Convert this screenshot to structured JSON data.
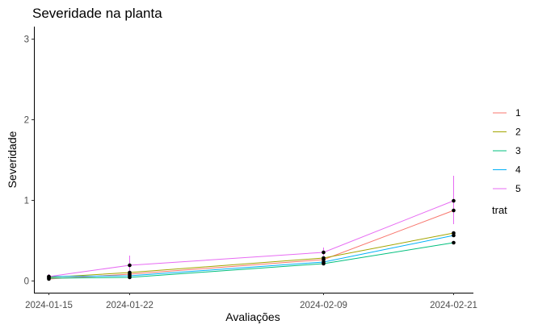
{
  "chart_data": {
    "type": "line",
    "title": "Severidade na planta",
    "xlabel": "Avaliações",
    "ylabel": "Severidade",
    "x": [
      "2024-01-15",
      "2024-01-22",
      "2024-02-09",
      "2024-02-21"
    ],
    "x_ticks": [
      "2024-01-15",
      "2024-01-22",
      "2024-02-09",
      "2024-02-21"
    ],
    "y_ticks": [
      "0",
      "1",
      "2",
      "3"
    ],
    "ylim": [
      -0.15,
      3.15
    ],
    "grid": false,
    "legend": {
      "title": "trat",
      "position": "right"
    },
    "series": [
      {
        "name": "1",
        "color": "#F8766D",
        "values": [
          0.02,
          0.08,
          0.26,
          0.87
        ]
      },
      {
        "name": "2",
        "color": "#A3A500",
        "values": [
          0.04,
          0.1,
          0.28,
          0.59
        ]
      },
      {
        "name": "3",
        "color": "#00BF7D",
        "values": [
          0.03,
          0.04,
          0.21,
          0.47
        ]
      },
      {
        "name": "4",
        "color": "#00B0F6",
        "values": [
          0.05,
          0.06,
          0.23,
          0.56
        ]
      },
      {
        "name": "5",
        "color": "#E76BF3",
        "values": [
          0.05,
          0.19,
          0.35,
          0.99
        ]
      }
    ],
    "error_bars": {
      "series": "5",
      "lower": [
        0.0,
        0.09,
        0.31,
        0.7
      ],
      "upper": [
        0.08,
        0.31,
        0.41,
        1.3
      ]
    },
    "point_color": "#000000"
  }
}
